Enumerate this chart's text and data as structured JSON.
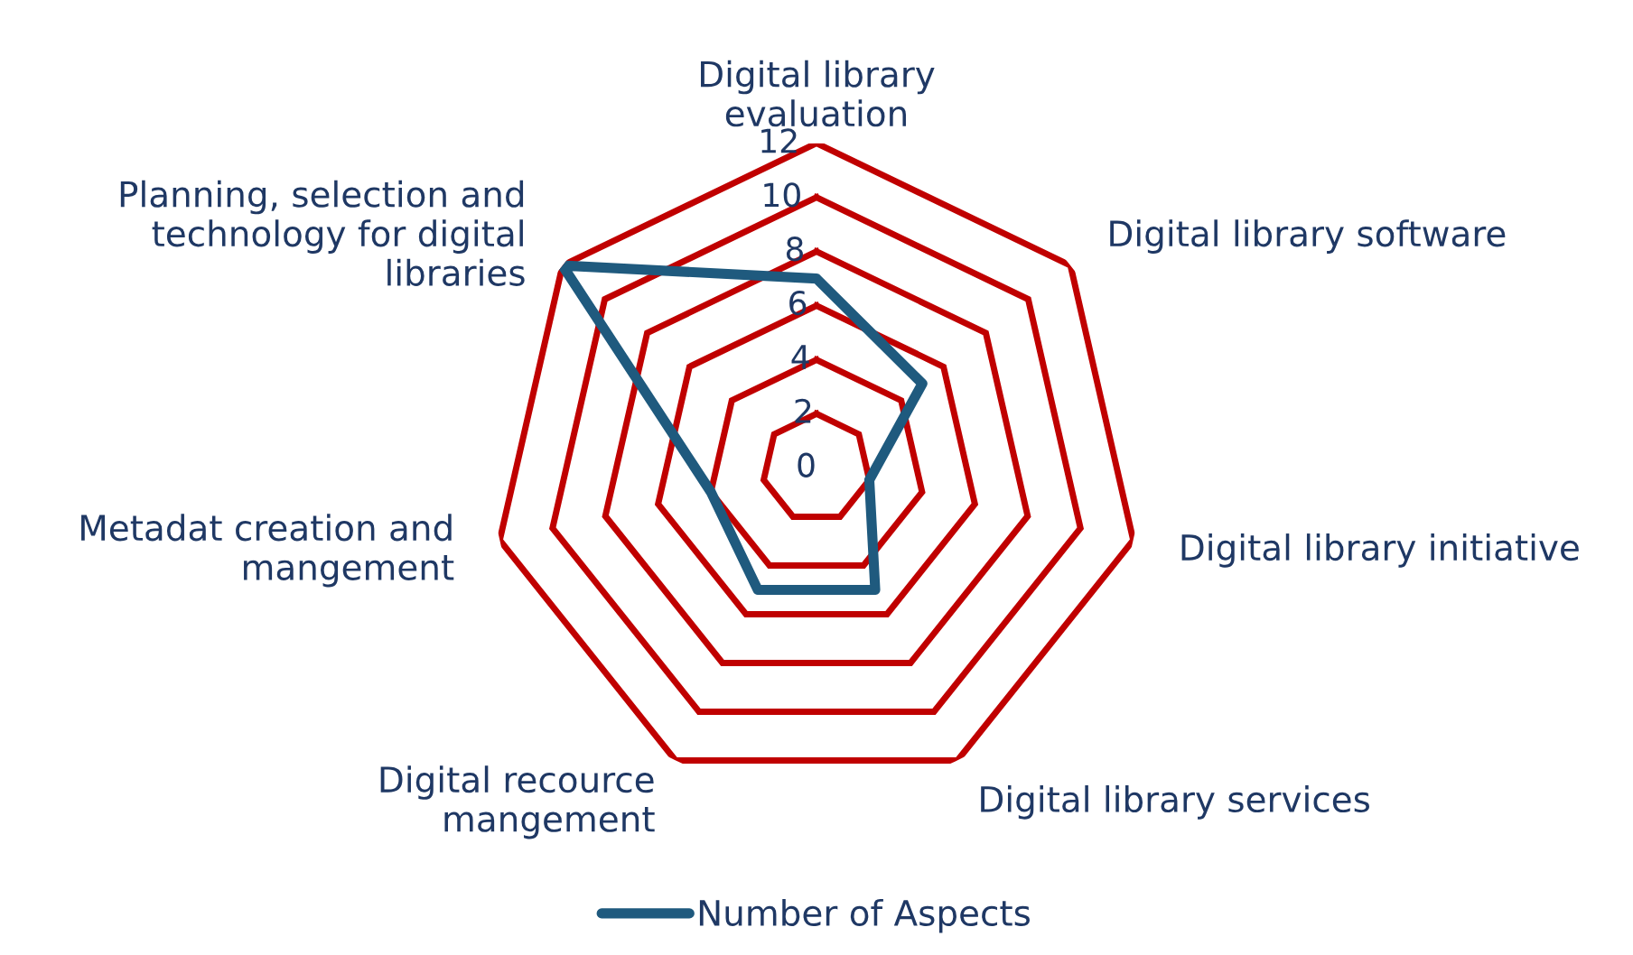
{
  "chart_data": {
    "type": "radar",
    "categories": [
      "Digital library evaluation",
      "Digital library software",
      "Digital library initiative",
      "Digital library services",
      "Digital recource mangement",
      "Metadat creation and mangement",
      "Planning, selection and technology for digital libraries"
    ],
    "series": [
      {
        "name": "Number of Aspects",
        "color": "#1f5a7e",
        "values": [
          7,
          5,
          2,
          5,
          5,
          4,
          12
        ]
      }
    ],
    "ylim": [
      0,
      12
    ],
    "yticks": [
      0,
      2,
      4,
      6,
      8,
      10,
      12
    ],
    "grid": true,
    "legend": "bottom"
  }
}
